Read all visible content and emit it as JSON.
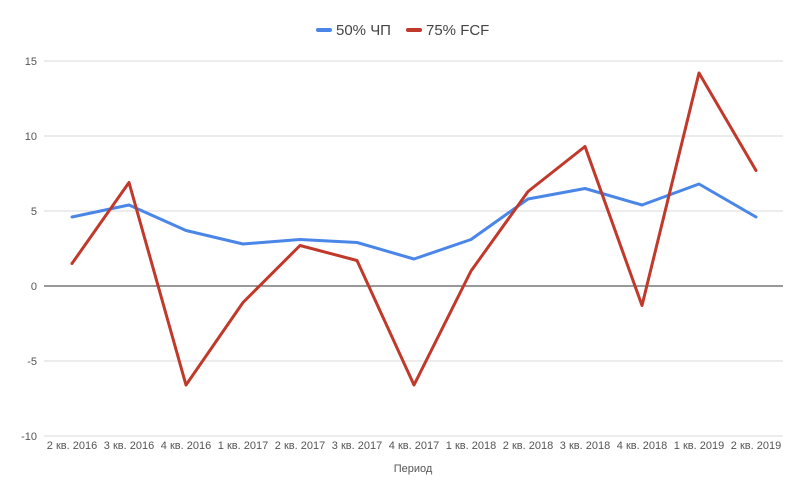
{
  "chart_data": {
    "type": "line",
    "categories": [
      "2 кв. 2016",
      "3 кв. 2016",
      "4 кв. 2016",
      "1 кв. 2017",
      "2 кв. 2017",
      "3 кв. 2017",
      "4 кв. 2017",
      "1 кв. 2018",
      "2 кв. 2018",
      "3 кв. 2018",
      "4 кв. 2018",
      "1 кв. 2019",
      "2 кв. 2019"
    ],
    "series": [
      {
        "name": "50% ЧП",
        "color": "#4a86e8",
        "values": [
          4.6,
          5.4,
          3.7,
          2.8,
          3.1,
          2.9,
          1.8,
          3.1,
          5.8,
          6.5,
          5.4,
          6.8,
          4.6
        ]
      },
      {
        "name": "75% FCF",
        "color": "#c0392b",
        "values": [
          1.5,
          6.9,
          -6.6,
          -1.1,
          2.7,
          1.7,
          -6.6,
          1.0,
          6.3,
          9.3,
          -1.3,
          14.2,
          7.7
        ]
      }
    ],
    "xlabel": "Период",
    "ylabel": "",
    "ylim": [
      -10,
      15
    ],
    "yticks": [
      -10,
      -5,
      0,
      5,
      10,
      15
    ],
    "grid": true,
    "legend": "top-center"
  }
}
